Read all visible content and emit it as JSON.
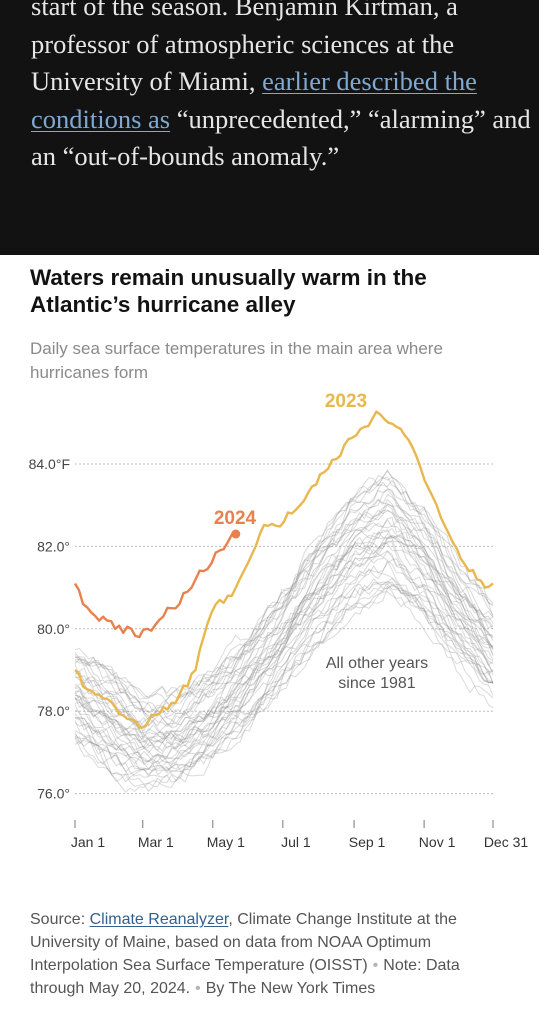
{
  "article": {
    "text_before": "start of the season. Benjamin Kirtman, a professor of atmospheric sciences at the University of Miami, ",
    "link_text": "earlier described the conditions as",
    "text_after": " “unprecedented,” “alarming” and an “out-of-bounds anomaly.”"
  },
  "chart_title": "Waters remain unusually warm in the Atlantic’s hurricane alley",
  "chart_subtitle": "Daily sea surface temperatures in the main area where hurricanes form",
  "footer": {
    "source_label": "Source: ",
    "source_link": "Climate Reanalyzer",
    "source_rest": ", Climate Change Institute at the University of Maine, based on data from NOAA Optimum Interpolation Sea Surface Temperature (OISST)",
    "note": "Note: Data through May 20, 2024.",
    "credit": "By The New York Times"
  },
  "colors": {
    "series_2023": "#e8b84e",
    "series_2024": "#e8814d",
    "other_years": "#8c8c8c",
    "gridline": "#bdbdbd",
    "background_article": "#121212",
    "link_article": "#7fa9d3",
    "link_footer": "#32618f"
  },
  "chart_data": {
    "type": "line",
    "title": "Waters remain unusually warm in the Atlantic’s hurricane alley",
    "subtitle": "Daily sea surface temperatures in the main area where hurricanes form",
    "xlabel": "",
    "ylabel": "",
    "y_unit": "°F",
    "xlim": [
      1,
      365
    ],
    "ylim": [
      75.5,
      85.5
    ],
    "grid": true,
    "y_ticks": [
      {
        "value": 76.0,
        "label": "76.0°"
      },
      {
        "value": 78.0,
        "label": "78.0°"
      },
      {
        "value": 80.0,
        "label": "80.0°"
      },
      {
        "value": 82.0,
        "label": "82.0°"
      },
      {
        "value": 84.0,
        "label": "84.0°F"
      }
    ],
    "x_ticks": [
      {
        "day": 1,
        "label": "Jan 1"
      },
      {
        "day": 60,
        "label": "Mar 1"
      },
      {
        "day": 121,
        "label": "May 1"
      },
      {
        "day": 182,
        "label": "Jul 1"
      },
      {
        "day": 244,
        "label": "Sep 1"
      },
      {
        "day": 305,
        "label": "Nov 1"
      },
      {
        "day": 365,
        "label": "Dec 31"
      }
    ],
    "series": [
      {
        "name": "2023",
        "x": [
          1,
          8,
          15,
          22,
          29,
          36,
          43,
          50,
          57,
          64,
          71,
          78,
          85,
          92,
          99,
          106,
          113,
          120,
          127,
          134,
          141,
          148,
          155,
          162,
          169,
          176,
          183,
          190,
          197,
          204,
          211,
          218,
          225,
          232,
          239,
          246,
          253,
          260,
          267,
          274,
          281,
          288,
          295,
          302,
          309,
          316,
          323,
          330,
          337,
          344,
          351,
          358,
          365
        ],
        "y": [
          79.0,
          78.6,
          78.5,
          78.4,
          78.3,
          78.1,
          77.9,
          77.8,
          77.6,
          77.7,
          77.9,
          78.1,
          78.2,
          78.4,
          78.6,
          79.0,
          79.8,
          80.4,
          80.7,
          80.8,
          81.0,
          81.4,
          81.8,
          82.3,
          82.5,
          82.5,
          82.6,
          82.8,
          83.0,
          83.3,
          83.5,
          83.8,
          84.1,
          84.2,
          84.6,
          84.7,
          84.9,
          85.1,
          85.2,
          85.0,
          84.9,
          84.7,
          84.4,
          83.9,
          83.4,
          83.0,
          82.5,
          82.1,
          81.7,
          81.4,
          81.2,
          81.0,
          81.1
        ]
      },
      {
        "name": "2024",
        "x": [
          1,
          8,
          15,
          22,
          29,
          36,
          43,
          50,
          57,
          64,
          71,
          78,
          85,
          92,
          99,
          106,
          113,
          120,
          127,
          134,
          141
        ],
        "y": [
          81.1,
          80.6,
          80.4,
          80.2,
          80.2,
          80.0,
          79.9,
          80.0,
          79.8,
          80.0,
          80.1,
          80.3,
          80.5,
          80.6,
          80.9,
          81.2,
          81.4,
          81.6,
          81.9,
          82.1,
          82.3
        ]
      },
      {
        "name": "All other years since 1981",
        "note": "band of gray lines, one per year 1981–2022",
        "x": [
          1,
          32,
          60,
          91,
          121,
          152,
          182,
          213,
          244,
          274,
          305,
          335,
          365
        ],
        "y_low": [
          77.2,
          76.4,
          76.1,
          76.3,
          76.8,
          77.6,
          78.6,
          79.6,
          80.4,
          80.8,
          80.0,
          79.0,
          78.2
        ],
        "y_high": [
          79.6,
          79.0,
          78.4,
          78.4,
          79.0,
          79.9,
          81.0,
          82.3,
          83.4,
          83.9,
          83.0,
          81.6,
          80.6
        ]
      }
    ],
    "annotations": [
      {
        "text": "2023",
        "series": "2023"
      },
      {
        "text": "2024",
        "series": "2024"
      },
      {
        "text": "All other years\nsince 1981",
        "series": "All other years since 1981"
      }
    ],
    "legend": "none"
  }
}
